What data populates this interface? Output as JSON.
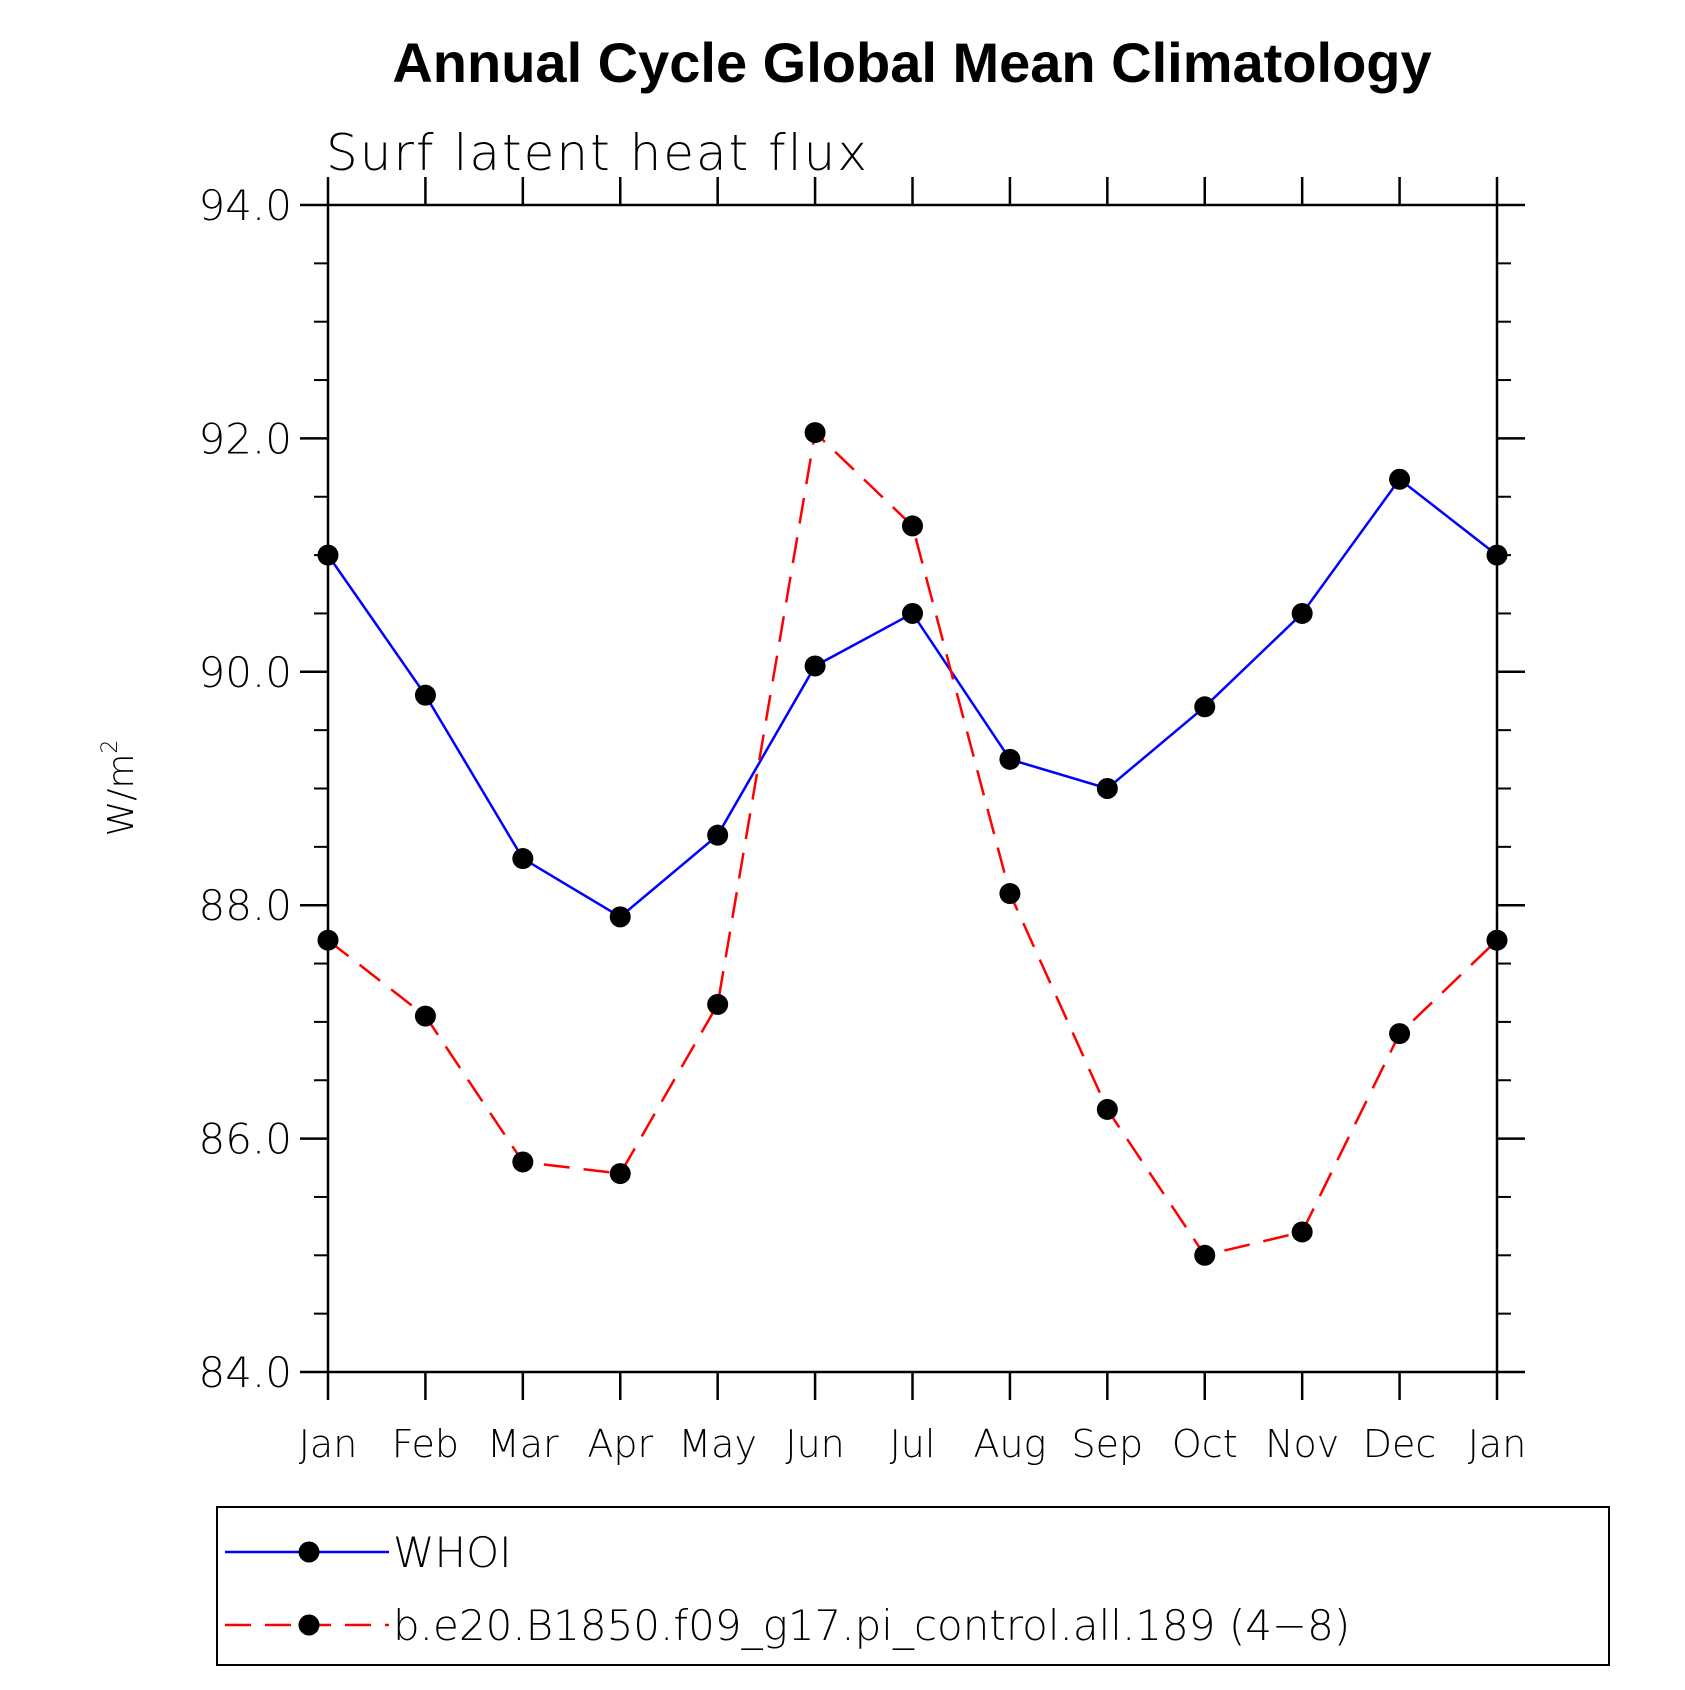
{
  "chart_data": {
    "type": "line",
    "title": "Annual Cycle Global Mean Climatology",
    "subtitle": "Surf latent heat flux",
    "ylabel_base": "W/m",
    "ylabel_sup": "2",
    "xlabel": "",
    "categories": [
      "Jan",
      "Feb",
      "Mar",
      "Apr",
      "May",
      "Jun",
      "Jul",
      "Aug",
      "Sep",
      "Oct",
      "Nov",
      "Dec",
      "Jan"
    ],
    "ylim": [
      84.0,
      94.0
    ],
    "yticks": [
      84.0,
      86.0,
      88.0,
      90.0,
      92.0,
      94.0
    ],
    "ytick_labels": [
      "84.0",
      "86.0",
      "88.0",
      "90.0",
      "92.0",
      "94.0"
    ],
    "grid": false,
    "legend_position": "bottom",
    "series": [
      {
        "name": "WHOI",
        "color": "#0000ff",
        "dash": "solid",
        "marker": "filled-circle",
        "values": [
          91.0,
          89.8,
          88.4,
          87.9,
          88.6,
          90.05,
          90.5,
          89.25,
          89.0,
          89.7,
          90.5,
          91.65,
          91.0
        ]
      },
      {
        "name": "b.e20.B1850.f09_g17.pi_control.all.189 (4−8)",
        "color": "#ff0000",
        "dash": "dashed",
        "marker": "filled-circle",
        "values": [
          87.7,
          87.05,
          85.8,
          85.7,
          87.15,
          92.05,
          91.25,
          88.1,
          86.25,
          85.0,
          85.2,
          86.9,
          87.7
        ]
      }
    ]
  }
}
